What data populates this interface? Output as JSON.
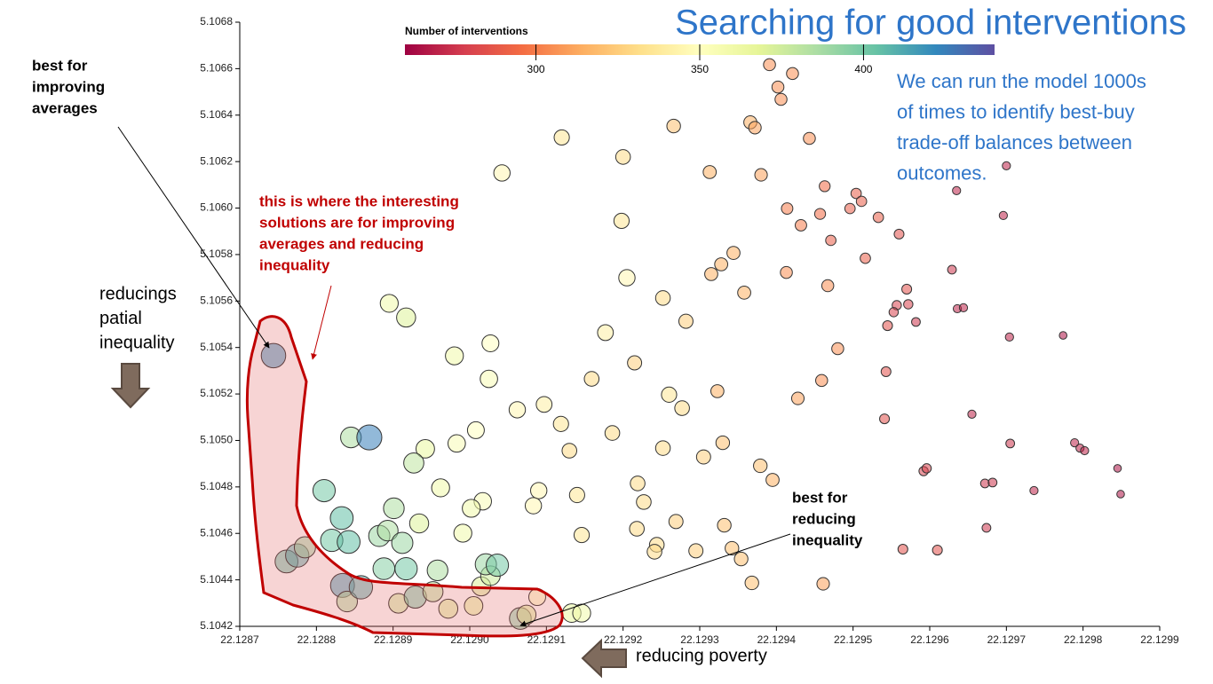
{
  "chart_data": {
    "type": "scatter",
    "title": "Searching for good interventions",
    "subtitle_lines": [
      "We can run the model 1000s",
      "of times to identify best-buy",
      "trade-off balances between",
      "outcomes."
    ],
    "xlim": [
      22.1287,
      22.1299
    ],
    "ylim": [
      5.1042,
      5.1068
    ],
    "xticks": [
      22.1287,
      22.1288,
      22.1289,
      {
        "value": 22.129,
        "label": "22.1290"
      },
      22.1291,
      22.1292,
      22.1293,
      22.1294,
      22.1295,
      22.1296,
      22.1297,
      22.1298,
      22.1299
    ],
    "yticks": [
      5.1068,
      5.1066,
      5.1064,
      5.1062,
      {
        "value": 5.106,
        "label": "5.1060"
      },
      5.1058,
      5.1056,
      5.1054,
      5.1052,
      {
        "value": 5.105,
        "label": "5.1050"
      },
      5.1048,
      5.1046,
      5.1044,
      5.1042
    ],
    "colorbar": {
      "label": "Number of interventions",
      "lim": [
        260,
        440
      ],
      "ticks": [
        300,
        350,
        400
      ],
      "colormap": [
        "#9e0142",
        "#d53e4f",
        "#f46d43",
        "#fdae61",
        "#fee08b",
        "#ffffbf",
        "#e6f598",
        "#abdda4",
        "#66c2a5",
        "#3288bd",
        "#5e4fa2"
      ]
    },
    "series": [
      {
        "x": [
          22.128744,
          22.128845,
          22.128869,
          22.128895,
          22.128917,
          22.12898,
          22.129027,
          22.129025,
          22.129042,
          22.12912,
          22.1292,
          22.129198,
          22.129205,
          22.129252,
          22.129282,
          22.129177,
          22.129215,
          22.129159,
          22.129097,
          22.129062,
          22.12926,
          22.129277,
          22.129323,
          22.12913,
          22.129119,
          22.129008,
          22.128983,
          22.128942,
          22.128927,
          22.128962,
          22.12881,
          22.128833,
          22.128901,
          22.129017,
          22.129002,
          22.12909,
          22.129083,
          22.12914,
          22.129219,
          22.129227,
          22.12882,
          22.128842,
          22.128882,
          22.128893,
          22.128912,
          22.128934,
          22.128991,
          22.129146,
          22.129218,
          22.129244,
          22.129241,
          22.129269,
          22.129295,
          22.129332,
          22.129342,
          22.129354,
          22.129305,
          22.12933,
          22.129252,
          22.129186,
          22.128761,
          22.128775,
          22.128785,
          22.128834,
          22.12884,
          22.128858,
          22.128888,
          22.128917,
          22.128958,
          22.128907,
          22.128929,
          22.128952,
          22.128972,
          22.129005,
          22.129015,
          22.129027,
          22.129021,
          22.129036,
          22.129088,
          22.129066,
          22.129074,
          22.129133,
          22.129146,
          22.129368,
          22.129461,
          22.129379,
          22.129395,
          22.129428,
          22.129459,
          22.12948,
          22.129467,
          22.129413,
          22.129358,
          22.129328,
          22.129315,
          22.129344,
          22.12938,
          22.129313,
          22.129266,
          22.129366,
          22.129372,
          22.129443,
          22.129391,
          22.129421,
          22.129402,
          22.129406,
          22.129414,
          22.129432,
          22.129457,
          22.129463,
          22.129471,
          22.129496,
          22.129504,
          22.129511,
          22.129516,
          22.129533,
          22.12956,
          22.12957,
          22.129557,
          22.129572,
          22.129553,
          22.129545,
          22.129582,
          22.129543,
          22.129541,
          22.129635,
          22.129629,
          22.129636,
          22.129644,
          22.1297,
          22.129696,
          22.129704,
          22.129774,
          22.129655,
          22.129705,
          22.129789,
          22.129796,
          22.129802,
          22.129845,
          22.129849,
          22.129736,
          22.129592,
          22.129596,
          22.129672,
          22.129682,
          22.129674,
          22.129565,
          22.12961
        ],
        "values": [
          5.105365,
          5.105013,
          5.105013,
          5.10559,
          5.105529,
          5.105364,
          5.105418,
          5.105265,
          5.106151,
          5.106304,
          5.10622,
          5.105945,
          5.1057,
          5.105613,
          5.105513,
          5.105464,
          5.105334,
          5.105265,
          5.105155,
          5.105132,
          5.105197,
          5.105139,
          5.105212,
          5.104956,
          5.105071,
          5.105044,
          5.104987,
          5.104964,
          5.104903,
          5.104796,
          5.104784,
          5.104666,
          5.104708,
          5.104738,
          5.104708,
          5.104784,
          5.104719,
          5.104765,
          5.104815,
          5.104735,
          5.10457,
          5.104563,
          5.104589,
          5.104612,
          5.104559,
          5.104643,
          5.104601,
          5.104593,
          5.10462,
          5.104551,
          5.104521,
          5.104651,
          5.104525,
          5.104635,
          5.104536,
          5.10449,
          5.104929,
          5.10499,
          5.104967,
          5.105032,
          5.104479,
          5.104505,
          5.10454,
          5.104376,
          5.104307,
          5.104368,
          5.104448,
          5.104448,
          5.104441,
          5.104299,
          5.104326,
          5.104349,
          5.104276,
          5.104288,
          5.104372,
          5.104418,
          5.104467,
          5.104463,
          5.104326,
          5.104234,
          5.10425,
          5.104257,
          5.104257,
          5.104387,
          5.104383,
          5.104891,
          5.10483,
          5.105181,
          5.105258,
          5.105395,
          5.105666,
          5.105723,
          5.105636,
          5.105758,
          5.105716,
          5.105807,
          5.106143,
          5.106155,
          5.106353,
          5.106369,
          5.106346,
          5.1063,
          5.106617,
          5.106579,
          5.106521,
          5.106468,
          5.105998,
          5.105926,
          5.105975,
          5.106094,
          5.105861,
          5.105998,
          5.106063,
          5.106029,
          5.105784,
          5.10596,
          5.105888,
          5.105651,
          5.105582,
          5.105586,
          5.105552,
          5.105494,
          5.10551,
          5.105296,
          5.105093,
          5.106075,
          5.105735,
          5.105567,
          5.105571,
          5.106182,
          5.105968,
          5.105445,
          5.105452,
          5.105113,
          5.104987,
          5.10499,
          5.104967,
          5.104956,
          5.10488,
          5.104769,
          5.104784,
          5.104868,
          5.10488,
          5.104815,
          5.104819,
          5.104624,
          5.104532,
          5.104528
        ],
        "sizes": [
          420,
          385,
          425,
          360,
          370,
          360,
          350,
          355,
          345,
          335,
          330,
          335,
          345,
          330,
          325,
          340,
          325,
          330,
          340,
          345,
          335,
          330,
          315,
          330,
          335,
          350,
          355,
          365,
          380,
          360,
          400,
          405,
          385,
          355,
          360,
          345,
          345,
          335,
          330,
          330,
          400,
          405,
          390,
          385,
          390,
          370,
          360,
          335,
          330,
          330,
          330,
          325,
          325,
          320,
          320,
          320,
          325,
          320,
          330,
          330,
          405,
          410,
          390,
          415,
          385,
          410,
          395,
          400,
          385,
          375,
          400,
          380,
          370,
          365,
          370,
          375,
          390,
          400,
          350,
          395,
          370,
          365,
          360,
          320,
          310,
          320,
          315,
          310,
          305,
          305,
          305,
          305,
          315,
          315,
          315,
          315,
          310,
          315,
          320,
          315,
          310,
          305,
          305,
          305,
          305,
          305,
          300,
          300,
          295,
          295,
          290,
          290,
          290,
          290,
          290,
          290,
          285,
          285,
          280,
          280,
          280,
          285,
          275,
          285,
          285,
          270,
          275,
          270,
          270,
          270,
          270,
          270,
          265,
          270,
          275,
          270,
          270,
          270,
          265,
          265,
          270,
          280,
          280,
          275,
          275,
          275,
          285,
          285
        ]
      }
    ],
    "annotations": [
      {
        "lines": [
          "best for",
          "improving",
          "averages"
        ]
      },
      {
        "lines": [
          "this is where the interesting",
          "solutions are for improving",
          "averages and reducing",
          "inequality"
        ]
      },
      {
        "lines": [
          "best for",
          "reducing",
          "inequality"
        ]
      },
      {
        "lines": [
          "reducings",
          "patial",
          "inequality"
        ]
      },
      {
        "lines": [
          "reducing poverty"
        ]
      }
    ]
  }
}
